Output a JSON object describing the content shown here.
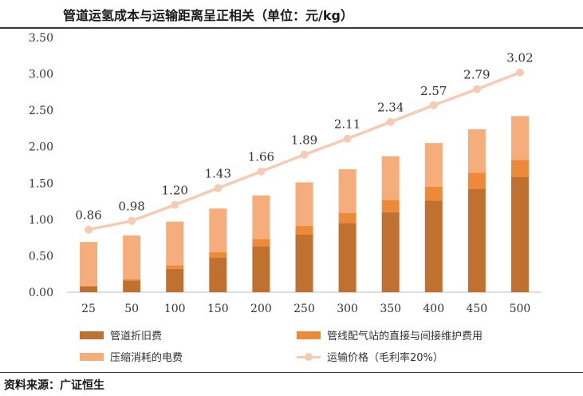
{
  "header": {
    "title": "管道运氢成本与运输距离呈正相关（单位：元/kg）"
  },
  "footer": {
    "source": "资料来源：广证恒生"
  },
  "chart_data": {
    "type": "bar",
    "stacked": true,
    "categories": [
      "25",
      "50",
      "100",
      "150",
      "200",
      "250",
      "300",
      "350",
      "400",
      "450",
      "500"
    ],
    "ylim": [
      0,
      3.5
    ],
    "yticks": [
      "0.00",
      "0.50",
      "1.00",
      "1.50",
      "2.00",
      "2.50",
      "3.00",
      "3.50"
    ],
    "grid": false,
    "legend_position": "bottom",
    "series": [
      {
        "name": "管道折旧费",
        "type": "bar",
        "color": "#c0702f",
        "values": [
          0.08,
          0.16,
          0.32,
          0.48,
          0.63,
          0.79,
          0.95,
          1.1,
          1.26,
          1.42,
          1.58
        ]
      },
      {
        "name": "管线配气站的直接与间接维护费用",
        "type": "bar",
        "color": "#ed8a3a",
        "values": [
          0.01,
          0.02,
          0.05,
          0.07,
          0.1,
          0.12,
          0.14,
          0.17,
          0.19,
          0.22,
          0.24
        ]
      },
      {
        "name": "压缩消耗的电费",
        "type": "bar",
        "color": "#f5ad7c",
        "values": [
          0.6,
          0.6,
          0.6,
          0.6,
          0.6,
          0.6,
          0.6,
          0.6,
          0.6,
          0.6,
          0.6
        ]
      },
      {
        "name": "运输价格（毛利率20%）",
        "type": "line",
        "color": "#f7cbb3",
        "values": [
          0.86,
          0.98,
          1.2,
          1.43,
          1.66,
          1.89,
          2.11,
          2.34,
          2.57,
          2.79,
          3.02
        ],
        "labels": [
          "0.86",
          "0.98",
          "1.20",
          "1.43",
          "1.66",
          "1.89",
          "2.11",
          "2.34",
          "2.57",
          "2.79",
          "3.02"
        ]
      }
    ]
  }
}
